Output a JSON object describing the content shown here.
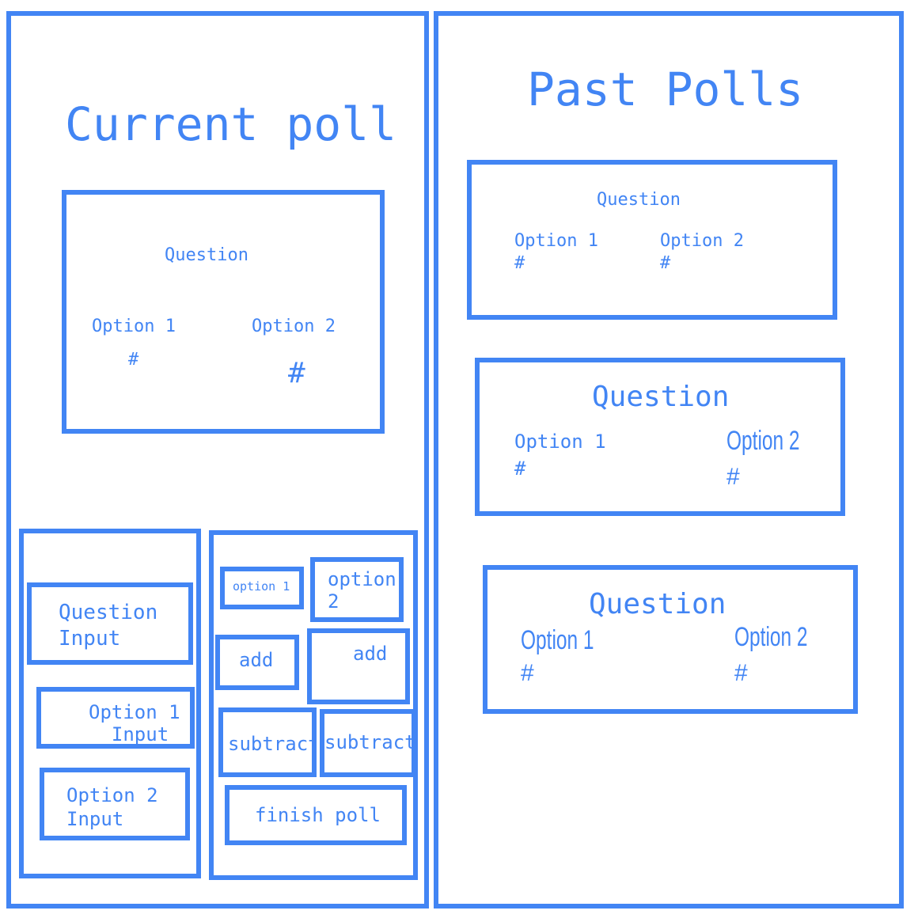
{
  "accent_color": "#4285f4",
  "current_poll": {
    "title": "Current poll",
    "card": {
      "question": "Question",
      "option1_label": "Option 1",
      "option1_count": "#",
      "option2_label": "Option 2",
      "option2_count": "#"
    },
    "inputs": {
      "question_input": "Question\nInput",
      "option1_input": "Option 1\n  Input",
      "option2_input": "Option 2\nInput"
    },
    "controls": {
      "option1_label": "option 1",
      "option2_label": "option\n2",
      "add_option1": "add",
      "add_option2": "add",
      "subtract_option1": "subtract",
      "subtract_option2": "subtract",
      "finish_poll": "finish poll"
    }
  },
  "past_polls": {
    "title": "Past Polls",
    "items": [
      {
        "question": "Question",
        "option1_label": "Option 1",
        "option1_count": "#",
        "option2_label": "Option 2",
        "option2_count": "#"
      },
      {
        "question": "Question",
        "option1_label": "Option 1",
        "option1_count": "#",
        "option2_label": "Option 2",
        "option2_count": "#"
      },
      {
        "question": "Question",
        "option1_label": "Option 1",
        "option1_count": "#",
        "option2_label": "Option 2",
        "option2_count": "#"
      }
    ]
  }
}
